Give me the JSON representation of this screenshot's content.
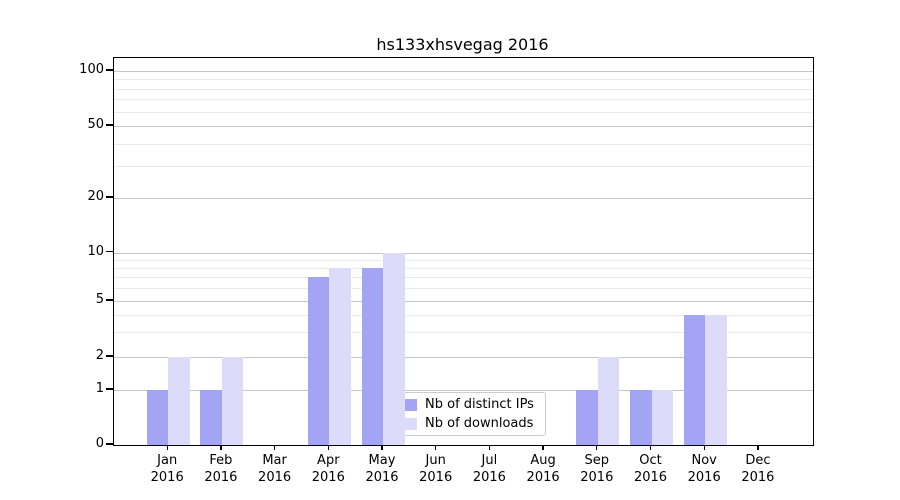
{
  "chart_data": {
    "type": "bar",
    "title": "hs133xhsvegag 2016",
    "categories": [
      "Jan",
      "Feb",
      "Mar",
      "Apr",
      "May",
      "Jun",
      "Jul",
      "Aug",
      "Sep",
      "Oct",
      "Nov",
      "Dec"
    ],
    "x_tick_second_line": "2016",
    "series": [
      {
        "name": "Nb of distinct IPs",
        "color": "#a4a4f4",
        "values": [
          1,
          1,
          0,
          7,
          8,
          0,
          0,
          0,
          1,
          1,
          4,
          0
        ]
      },
      {
        "name": "Nb of downloads",
        "color": "#dcdcfa",
        "values": [
          2,
          2,
          0,
          8,
          10,
          0,
          0,
          0,
          2,
          1,
          4,
          0
        ]
      }
    ],
    "y_axis": {
      "scale": "log-like",
      "range": [
        0,
        100
      ],
      "major_ticks": [
        0,
        1,
        2,
        5,
        10,
        20,
        50,
        100
      ],
      "minor_gridlines": [
        3,
        4,
        6,
        7,
        8,
        9,
        30,
        40,
        60,
        70,
        80,
        90
      ]
    },
    "legend": {
      "position": "lower-center",
      "background": "rgba(255,255,255,0.82)",
      "border_color": "#cccccc"
    },
    "grid": {
      "major_color": "#c6c6c6",
      "minor_color": "#e9e9e9"
    }
  }
}
